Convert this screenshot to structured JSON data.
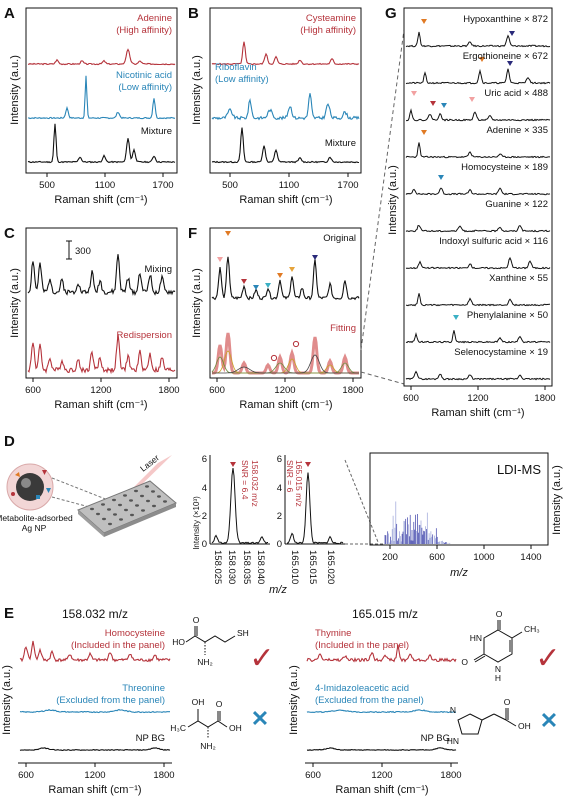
{
  "panels": {
    "A": {
      "label": "A",
      "ylabel": "Intensity (a.u.)",
      "xlabel": "Raman shift (cm⁻¹)",
      "ticks": [
        "500",
        "1100",
        "1700"
      ],
      "traces": [
        {
          "line1": "Adenine",
          "line2": "(High affinity)",
          "color": "#b5333b"
        },
        {
          "line1": "Nicotinic acid",
          "line2": "(Low affinity)",
          "color": "#2a86b8"
        },
        {
          "line1": "Mixture",
          "line2": "",
          "color": "#111111"
        }
      ]
    },
    "B": {
      "label": "B",
      "ylabel": "Intensity (a.u.)",
      "xlabel": "Raman shift (cm⁻¹)",
      "ticks": [
        "500",
        "1100",
        "1700"
      ],
      "traces": [
        {
          "line1": "Cysteamine",
          "line2": "(High affinity)",
          "color": "#b5333b"
        },
        {
          "line1": "Riboflavin",
          "line2": "(Low affinity)",
          "color": "#2a86b8"
        },
        {
          "line1": "Mixture",
          "line2": "",
          "color": "#111111"
        }
      ]
    },
    "C": {
      "label": "C",
      "ylabel": "Intensity (a.u.)",
      "xlabel": "Raman shift (cm⁻¹)",
      "ticks": [
        "600",
        "1200",
        "1800"
      ],
      "scalebar": "300",
      "traces": [
        {
          "line1": "Mixing",
          "color": "#111111"
        },
        {
          "line1": "Redispersion",
          "color": "#b5333b"
        }
      ]
    },
    "F": {
      "label": "F",
      "ylabel": "Intensity (a.u.)",
      "xlabel": "Raman shift (cm⁻¹)",
      "ticks": [
        "600",
        "1200",
        "1800"
      ],
      "traces": [
        {
          "line1": "Original",
          "color": "#111111"
        },
        {
          "line1": "Fitting",
          "color": "#b5333b"
        }
      ]
    },
    "G": {
      "label": "G",
      "ylabel": "Intensity (a.u.)",
      "xlabel": "Raman shift (cm⁻¹)",
      "ticks": [
        "600",
        "1200",
        "1800"
      ],
      "traces": [
        "Hypoxanthine × 872",
        "Ergothioneine × 672",
        "Uric acid × 488",
        "Adenine × 335",
        "Homocysteine × 189",
        "Guanine × 122",
        "Indoxyl sulfuric acid × 116",
        "Xanthine × 55",
        "Phenylalanine × 50",
        "Selenocystamine × 19"
      ]
    },
    "D": {
      "label": "D",
      "laser": "Laser",
      "np_line1": "Metabolite-adsorbed",
      "np_line2": "Ag NP",
      "ms_ylabel": "Intensity (×10³)",
      "ms_xlabel": "m/z",
      "zoom1": {
        "ticks": [
          "158.025",
          "158.030",
          "158.035",
          "158.040"
        ],
        "annot1": "158.032 m/z",
        "annot2": "SNR = 6.4",
        "yticks": [
          "0",
          "2",
          "4",
          "6"
        ]
      },
      "zoom2": {
        "ticks": [
          "165.010",
          "165.015",
          "165.020"
        ],
        "annot1": "165.015 m/z",
        "annot2": "SNR = 6",
        "yticks": [
          "0",
          "2",
          "4",
          "6"
        ]
      },
      "full": {
        "title": "LDI-MS",
        "ylabel": "Intensity (a.u.)",
        "xlabel": "m/z",
        "ticks": [
          "200",
          "600",
          "1000",
          "1400"
        ]
      }
    },
    "E": {
      "label": "E",
      "ylabel": "Intensity (a.u.)",
      "xlabel": "Raman shift (cm⁻¹)",
      "ticks": [
        "600",
        "1200",
        "1800"
      ],
      "left": {
        "title": "158.032 m/z",
        "traces": [
          {
            "line1": "Homocysteine",
            "line2": "(Included in the panel)",
            "color": "#b5333b"
          },
          {
            "line1": "Threonine",
            "line2": "(Excluded from the panel)",
            "color": "#2a86b8"
          },
          {
            "line1": "NP BG",
            "line2": "",
            "color": "#111111"
          }
        ],
        "check": "✓",
        "cross": "✕",
        "mol1": {
          "oh": "OH",
          "ho": "HO",
          "sh": "SH",
          "nh2": "NH₂",
          "o": "O"
        },
        "mol2": {
          "ch3": "H₃C",
          "oh": "OH",
          "nh2": "NH₂",
          "o": "O"
        }
      },
      "right": {
        "title": "165.015 m/z",
        "traces": [
          {
            "line1": "Thymine",
            "line2": "(Included in the panel)",
            "color": "#b5333b"
          },
          {
            "line1": "4-Imidazoleacetic acid",
            "line2": "(Excluded from the panel)",
            "color": "#2a86b8"
          },
          {
            "line1": "NP BG",
            "line2": "",
            "color": "#111111"
          }
        ],
        "check": "✓",
        "cross": "✕",
        "mol1": {
          "o1": "O",
          "o2": "O",
          "hn1": "HN",
          "hn2": "H",
          "n": "N",
          "ch3": "CH₃"
        },
        "mol2": {
          "n": "N",
          "hn": "HN",
          "o": "O",
          "oh": "OH"
        }
      }
    }
  }
}
